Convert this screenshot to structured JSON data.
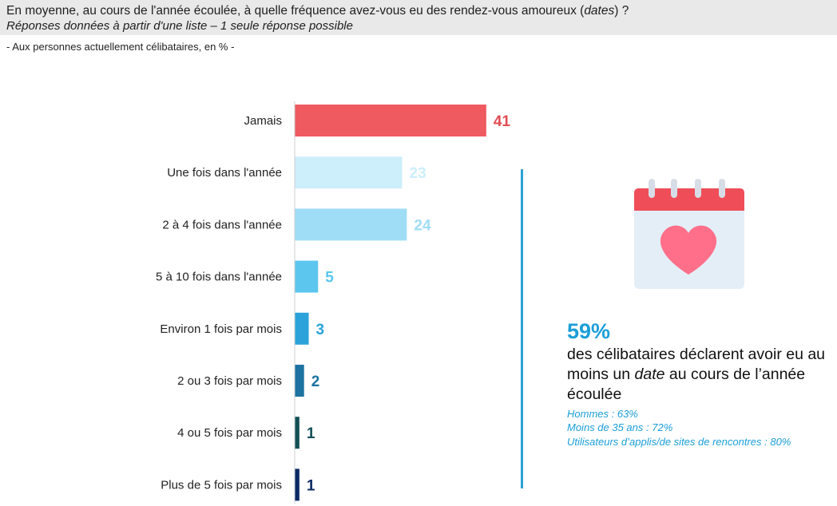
{
  "header": {
    "question": "En moyenne, au cours de l'année écoulée, à quelle fréquence avez-vous eu des rendez-vous amoureux (dates) ?",
    "instructions": "Réponses données à partir d'une liste – 1 seule réponse possible"
  },
  "base_note": "- Aux personnes actuellement célibataires, en % -",
  "chart_data": {
    "type": "bar",
    "orientation": "horizontal",
    "categories": [
      "Jamais",
      "Une fois dans l'année",
      "2 à 4 fois dans l'année",
      "5 à 10 fois dans l'année",
      "Environ 1 fois par mois",
      "2 ou 3 fois par mois",
      "4 ou 5 fois par mois",
      "Plus de 5 fois par mois"
    ],
    "values": [
      41,
      23,
      24,
      5,
      3,
      2,
      1,
      1
    ],
    "colors": [
      "#ee5a60",
      "#cdeefb",
      "#9fddf6",
      "#5cc6ee",
      "#2ba3da",
      "#1c72a0",
      "#124f56",
      "#0c2a63"
    ],
    "label_colors": [
      "#e24c52",
      "#cdeefb",
      "#9fddf6",
      "#5cc6ee",
      "#2ba3da",
      "#1c72a0",
      "#124f56",
      "#0c2a63"
    ],
    "unit": "%",
    "grid": false,
    "legend": "none"
  },
  "callout": {
    "icon": "calendar-heart-icon",
    "percent": "59%",
    "text": "des célibataires déclarent avoir eu au moins un date au cours de l’année écoulée",
    "subgroups": [
      "Hommes : 63%",
      "Moins de 35 ans : 72%",
      "Utilisateurs d’applis/de sites de rencontres : 80%"
    ],
    "accent": "#1b9ed8",
    "divider_color": "#2aa3d6"
  }
}
